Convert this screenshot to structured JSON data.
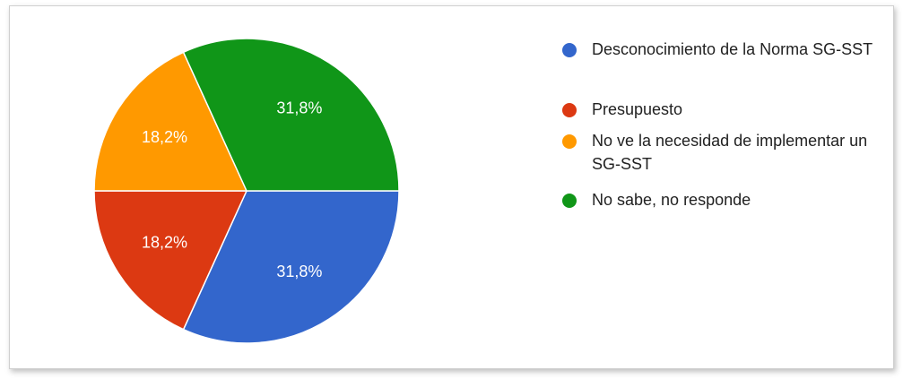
{
  "chart_data": {
    "type": "pie",
    "categories": [
      "Desconocimiento de la Norma SG-SST",
      "Presupuesto",
      "No ve la necesidad de implementar un SG-SST",
      "No sabe, no responde"
    ],
    "values": [
      31.8,
      18.2,
      18.2,
      31.8
    ],
    "value_labels": [
      "31,8%",
      "18,2%",
      "18,2%",
      "31,8%"
    ],
    "colors": [
      "#3366cc",
      "#dc3912",
      "#ff9900",
      "#109618"
    ],
    "legend": "right"
  }
}
